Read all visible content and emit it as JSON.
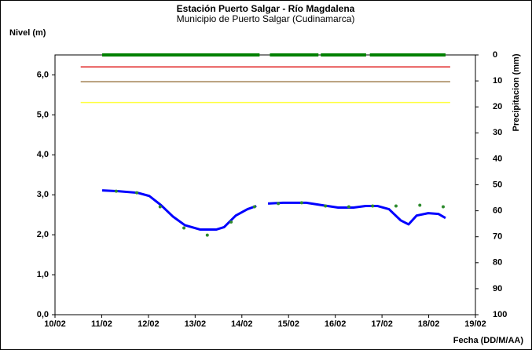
{
  "chart_data": {
    "type": "line",
    "title": "Estación Puerto Salgar - Río Magdalena",
    "subtitle": "Municipio de Puerto Salgar (Cudinamarca)",
    "y_label": "Nivel (m)",
    "y2_label": "Precipitacion (mm)",
    "x_label": "Fecha (DD/M/AA)",
    "xlim": [
      10,
      19
    ],
    "xticks": [
      {
        "value": 10,
        "label": "10/02"
      },
      {
        "value": 11,
        "label": "11/02"
      },
      {
        "value": 12,
        "label": "12/02"
      },
      {
        "value": 13,
        "label": "13/02"
      },
      {
        "value": 14,
        "label": "14/02"
      },
      {
        "value": 15,
        "label": "15/02"
      },
      {
        "value": 16,
        "label": "16/02"
      },
      {
        "value": 17,
        "label": "17/02"
      },
      {
        "value": 18,
        "label": "18/02"
      },
      {
        "value": 19,
        "label": "19/02"
      }
    ],
    "ylim": [
      0,
      6.5
    ],
    "yticks": [
      {
        "value": 0,
        "label": "0,0"
      },
      {
        "value": 1,
        "label": "1,0"
      },
      {
        "value": 2,
        "label": "2,0"
      },
      {
        "value": 3,
        "label": "3,0"
      },
      {
        "value": 4,
        "label": "4,0"
      },
      {
        "value": 5,
        "label": "5,0"
      },
      {
        "value": 6,
        "label": "6,0"
      }
    ],
    "y2lim": [
      100,
      0
    ],
    "y2ticks": [
      0,
      10,
      20,
      30,
      40,
      50,
      60,
      70,
      80,
      90,
      100
    ],
    "reference_lines": [
      {
        "value": 6.2,
        "color": "#e02020",
        "x": [
          10.55,
          18.46
        ]
      },
      {
        "value": 5.83,
        "color": "#a08050",
        "x": [
          10.55,
          18.46
        ]
      },
      {
        "value": 5.31,
        "color": "#ffff40",
        "x": [
          10.55,
          18.46
        ]
      }
    ],
    "series": [
      {
        "style": "line",
        "color": "#0000ff",
        "axis": "y",
        "x": [
          11.01,
          11.35,
          11.77,
          12.02,
          12.27,
          12.52,
          12.78,
          13.11,
          13.45,
          13.62,
          13.87,
          14.12,
          14.31,
          14.45,
          14.56,
          14.88,
          15.38,
          15.72,
          16.06,
          16.39,
          16.65,
          16.9,
          17.15,
          17.4,
          17.57,
          17.74,
          17.99,
          18.21,
          18.36
        ],
        "values": [
          3.11,
          3.09,
          3.05,
          2.97,
          2.74,
          2.46,
          2.24,
          2.13,
          2.13,
          2.19,
          2.48,
          2.64,
          2.72,
          null,
          2.78,
          2.8,
          2.8,
          2.74,
          2.68,
          2.68,
          2.72,
          2.72,
          2.64,
          2.36,
          2.26,
          2.48,
          2.54,
          2.52,
          2.42
        ]
      },
      {
        "style": "points",
        "color": "#2e8b2e",
        "axis": "y",
        "x": [
          11.31,
          11.75,
          12.25,
          12.76,
          13.26,
          13.77,
          14.27,
          14.78,
          15.28,
          15.79,
          16.29,
          16.8,
          17.3,
          17.81,
          18.31
        ],
        "values": [
          3.09,
          3.05,
          2.7,
          2.17,
          1.99,
          2.32,
          2.7,
          2.78,
          2.8,
          2.72,
          2.7,
          2.72,
          2.72,
          2.74,
          2.7
        ]
      },
      {
        "style": "bar-line",
        "color": "#008000",
        "axis": "y2",
        "x": [
          11.01,
          14.38,
          14.49,
          14.6,
          15.64,
          15.67,
          15.69,
          16.66,
          16.7,
          16.74,
          18.36
        ],
        "values": [
          0,
          0,
          null,
          0,
          0,
          null,
          0,
          0,
          null,
          0,
          0
        ]
      }
    ]
  }
}
